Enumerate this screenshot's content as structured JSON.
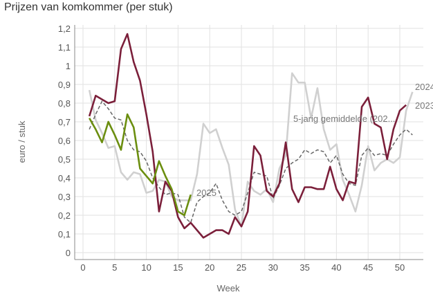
{
  "chart_data": {
    "type": "line",
    "title": "Prijzen van komkommer (per stuk)",
    "xlabel": "Week",
    "ylabel": "euro / stuk",
    "xlim": [
      0,
      53
    ],
    "ylim": [
      0,
      1.2
    ],
    "xticks": [
      0,
      5,
      10,
      15,
      20,
      25,
      30,
      35,
      40,
      45,
      50
    ],
    "xtick_labels": [
      "0",
      "5",
      "10",
      "15",
      "20",
      "25",
      "30",
      "35",
      "40",
      "45",
      "50"
    ],
    "yticks": [
      0,
      0.1,
      0.2,
      0.3,
      0.4,
      0.5,
      0.6,
      0.7,
      0.8,
      0.9,
      1,
      1.1,
      1.2
    ],
    "ytick_labels": [
      "0",
      "0,1",
      "0,2",
      "0,3",
      "0,4",
      "0,5",
      "0,6",
      "0,7",
      "0,8",
      "0,9",
      "1",
      "1,1",
      "1,2"
    ],
    "grid": true,
    "series": [
      {
        "name": "2023",
        "label": "2023",
        "color": "#d0d0d0",
        "dash": false,
        "start_week": 1,
        "values": [
          0.87,
          0.71,
          0.64,
          0.56,
          0.57,
          0.43,
          0.39,
          0.43,
          0.42,
          0.32,
          0.33,
          0.39,
          0.38,
          0.3,
          0.28,
          0.28,
          0.28,
          0.42,
          0.69,
          0.64,
          0.66,
          0.56,
          0.47,
          0.23,
          0.14,
          0.38,
          0.33,
          0.31,
          0.34,
          0.27,
          0.45,
          0.52,
          0.96,
          0.91,
          0.91,
          0.72,
          0.88,
          0.66,
          0.55,
          0.58,
          0.39,
          0.31,
          0.22,
          0.36,
          0.57,
          0.44,
          0.48,
          0.5,
          0.48,
          0.51,
          0.76,
          0.86
        ]
      },
      {
        "name": "5-jarig gemiddelde",
        "label": "5-jarig gemiddelde (202...",
        "color": "#666666",
        "dash": true,
        "start_week": 1,
        "values": [
          0.66,
          0.74,
          0.81,
          0.77,
          0.72,
          0.71,
          0.6,
          0.55,
          0.54,
          0.49,
          0.4,
          0.35,
          0.31,
          0.32,
          0.31,
          0.19,
          0.16,
          0.27,
          0.3,
          0.32,
          0.37,
          0.28,
          0.22,
          0.2,
          0.22,
          0.32,
          0.43,
          0.42,
          0.41,
          0.29,
          0.36,
          0.45,
          0.48,
          0.5,
          0.55,
          0.53,
          0.55,
          0.54,
          0.48,
          0.52,
          0.42,
          0.37,
          0.36,
          0.52,
          0.56,
          0.52,
          0.53,
          0.52,
          0.58,
          0.63,
          0.66,
          0.63
        ]
      },
      {
        "name": "2024",
        "label": "2024",
        "color": "#7b1f3a",
        "dash": false,
        "start_week": 1,
        "values": [
          0.73,
          0.84,
          0.82,
          0.8,
          0.81,
          1.09,
          1.17,
          1.02,
          0.92,
          0.74,
          0.54,
          0.22,
          0.38,
          0.33,
          0.19,
          0.13,
          0.16,
          0.12,
          0.08,
          0.1,
          0.12,
          0.12,
          0.1,
          0.19,
          0.14,
          0.22,
          0.57,
          0.52,
          0.33,
          0.3,
          0.37,
          0.59,
          0.34,
          0.27,
          0.35,
          0.35,
          0.34,
          0.34,
          0.46,
          0.34,
          0.28,
          0.38,
          0.37,
          0.78,
          0.83,
          0.69,
          0.67,
          0.5,
          0.66,
          0.76,
          0.79
        ]
      },
      {
        "name": "2025",
        "label": "2025",
        "color": "#6b8e0f",
        "dash": false,
        "start_week": 1,
        "values": [
          0.72,
          0.66,
          0.59,
          0.7,
          0.63,
          0.55,
          0.74,
          0.67,
          0.45,
          0.41,
          0.37,
          0.49,
          0.41,
          0.34,
          0.22,
          0.2,
          0.31
        ]
      }
    ]
  }
}
